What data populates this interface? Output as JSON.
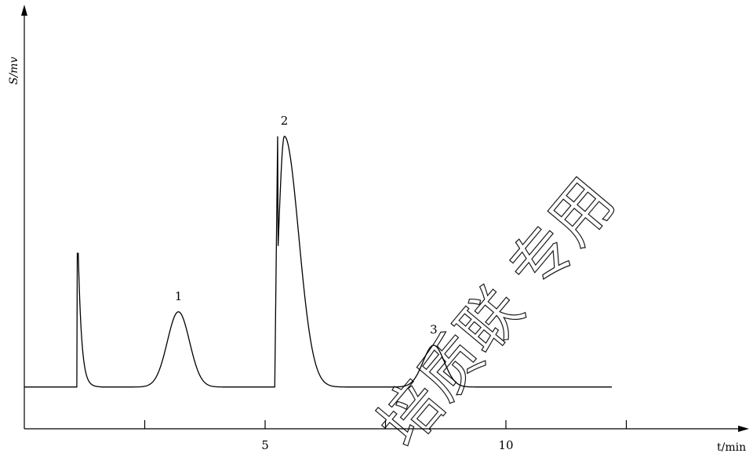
{
  "chart_data": {
    "type": "line",
    "title": "",
    "ylabel": "S/mv",
    "xlabel": "t/min",
    "x_ticks": [
      2.5,
      5,
      7.5,
      10,
      12.5
    ],
    "x_tick_labels": [
      "5",
      "10"
    ],
    "xlim": [
      0,
      15
    ],
    "ylim": [
      0,
      100
    ],
    "grid": false,
    "baseline": 10,
    "peaks": [
      {
        "label": "1",
        "time": 3.2,
        "height": 18
      },
      {
        "label": "2",
        "time": 5.4,
        "height": 60
      },
      {
        "label": "3",
        "time": 8.5,
        "height": 10
      }
    ]
  },
  "watermark": {
    "text": "培质联 专用"
  }
}
